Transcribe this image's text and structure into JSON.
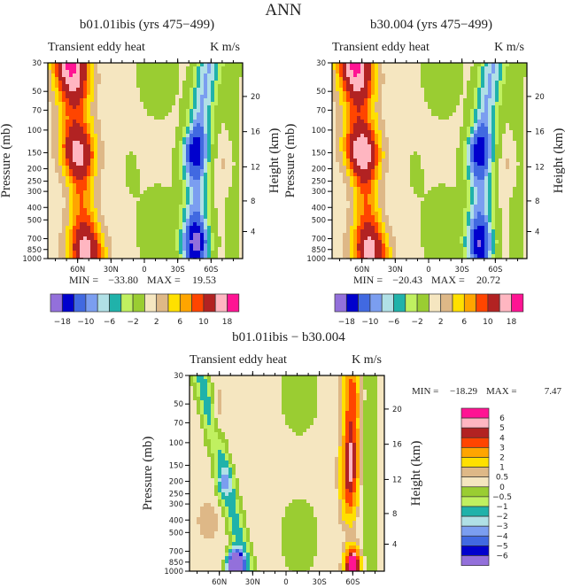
{
  "title": "ANN",
  "colors": [
    "#9370DB",
    "#0000CD",
    "#4169E1",
    "#7B9EF0",
    "#B0E0E6",
    "#20B2AA",
    "#C0F060",
    "#9ACD32",
    "#F5E6C0",
    "#DEB887",
    "#FFE000",
    "#FFA500",
    "#FF4500",
    "#B22222",
    "#FFB6C1",
    "#FF1493"
  ],
  "chart_data": [
    {
      "type": "heatmap",
      "title": "b01.01ibis (yrs 475−499)",
      "subtitle": "Transient eddy heat",
      "units": "K m/s",
      "xlabel": "",
      "ylabel": "Pressure (mb)",
      "ylabel_right": "Height (km)",
      "x_ticks": [
        "60N",
        "30N",
        "0",
        "30S",
        "60S"
      ],
      "y_ticks": [
        "30",
        "50",
        "70",
        "100",
        "150",
        "200",
        "250",
        "300",
        "400",
        "500",
        "700",
        "850",
        "1000"
      ],
      "y_right_ticks": [
        "20",
        "16",
        "12",
        "8",
        "4"
      ],
      "y_scale": "log",
      "min_label": "MIN =",
      "min": "−33.80",
      "max_label": "MAX =",
      "max": "19.53",
      "levels": [
        -18,
        -14,
        -10,
        -8,
        -6,
        -4,
        -2,
        0,
        2,
        4,
        6,
        8,
        10,
        14,
        18
      ],
      "colorbar_labels": [
        "−18",
        "−10",
        "−6",
        "−2",
        "2",
        "6",
        "10",
        "18"
      ]
    },
    {
      "type": "heatmap",
      "title": "b30.004 (yrs 475−499)",
      "subtitle": "Transient eddy heat",
      "units": "K m/s",
      "xlabel": "",
      "ylabel": "Pressure (mb)",
      "ylabel_right": "Height (km)",
      "x_ticks": [
        "60N",
        "30N",
        "0",
        "30S",
        "60S"
      ],
      "y_ticks": [
        "30",
        "50",
        "70",
        "100",
        "150",
        "200",
        "250",
        "300",
        "400",
        "500",
        "700",
        "850",
        "1000"
      ],
      "y_right_ticks": [
        "20",
        "16",
        "12",
        "8",
        "4"
      ],
      "y_scale": "log",
      "min_label": "MIN =",
      "min": "−20.43",
      "max_label": "MAX =",
      "max": "20.72",
      "levels": [
        -18,
        -14,
        -10,
        -8,
        -6,
        -4,
        -2,
        0,
        2,
        4,
        6,
        8,
        10,
        14,
        18
      ],
      "colorbar_labels": [
        "−18",
        "−10",
        "−6",
        "−2",
        "2",
        "6",
        "10",
        "18"
      ]
    },
    {
      "type": "heatmap",
      "title": "b01.01ibis − b30.004",
      "subtitle": "Transient eddy heat",
      "units": "K m/s",
      "xlabel": "",
      "ylabel": "Pressure (mb)",
      "ylabel_right": "Height (km)",
      "x_ticks": [
        "60N",
        "30N",
        "0",
        "30S",
        "60S"
      ],
      "y_ticks": [
        "30",
        "50",
        "70",
        "100",
        "150",
        "200",
        "250",
        "300",
        "400",
        "500",
        "700",
        "850",
        "1000"
      ],
      "y_right_ticks": [
        "20",
        "16",
        "12",
        "8",
        "4"
      ],
      "y_scale": "log",
      "min_label": "MIN =",
      "min": "−18.29",
      "max_label": "MAX =",
      "max": "7.47",
      "levels": [
        -6,
        -5,
        -4,
        -3,
        -2,
        -1,
        -0.5,
        0,
        0.5,
        1,
        2,
        3,
        4,
        5,
        6
      ],
      "colorbar_labels": [
        "6",
        "5",
        "4",
        "3",
        "2",
        "1",
        "0.5",
        "0",
        "−0.5",
        "−1",
        "−2",
        "−3",
        "−4",
        "−5",
        "−6"
      ]
    }
  ]
}
